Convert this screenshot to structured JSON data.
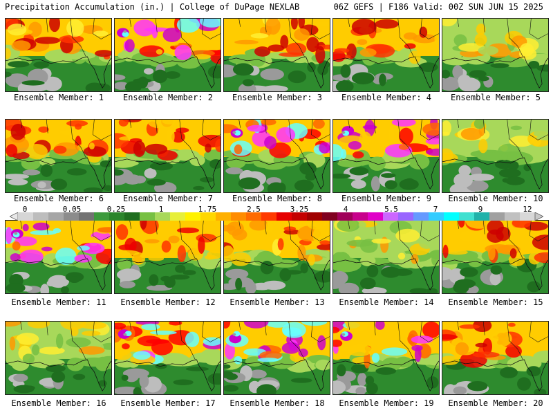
{
  "header": {
    "left": "Precipitation Accumulation (in.) | College of DuPage NEXLAB",
    "right": "06Z GEFS | F186 Valid: 00Z SUN JUN 15 2025"
  },
  "label_prefix": "Ensemble Member: ",
  "members": [
    {
      "n": "1",
      "style": "a",
      "seed": 1
    },
    {
      "n": "2",
      "style": "b",
      "seed": 2
    },
    {
      "n": "3",
      "style": "a",
      "seed": 3
    },
    {
      "n": "4",
      "style": "c",
      "seed": 4
    },
    {
      "n": "5",
      "style": "d",
      "seed": 5
    },
    {
      "n": "6",
      "style": "c",
      "seed": 6
    },
    {
      "n": "7",
      "style": "c",
      "seed": 7
    },
    {
      "n": "8",
      "style": "b",
      "seed": 8
    },
    {
      "n": "9",
      "style": "b",
      "seed": 9
    },
    {
      "n": "10",
      "style": "d",
      "seed": 10
    },
    {
      "n": "11",
      "style": "b",
      "seed": 11
    },
    {
      "n": "12",
      "style": "c",
      "seed": 12
    },
    {
      "n": "13",
      "style": "a",
      "seed": 13
    },
    {
      "n": "14",
      "style": "d",
      "seed": 14
    },
    {
      "n": "15",
      "style": "c",
      "seed": 15
    },
    {
      "n": "16",
      "style": "d",
      "seed": 16
    },
    {
      "n": "17",
      "style": "b",
      "seed": 17
    },
    {
      "n": "18",
      "style": "b",
      "seed": 18
    },
    {
      "n": "19",
      "style": "b",
      "seed": 19
    },
    {
      "n": "20",
      "style": "c",
      "seed": 20
    }
  ],
  "colorbar": {
    "colors": [
      "#d6d6d6",
      "#bdbdbd",
      "#a6a6a6",
      "#8c8c8c",
      "#737373",
      "#3d9a3d",
      "#2b852b",
      "#1f6e1f",
      "#77c043",
      "#a8d85a",
      "#e7ef3a",
      "#fff200",
      "#ffd700",
      "#ffb000",
      "#ff8c00",
      "#ff6a00",
      "#ff3a00",
      "#e60000",
      "#c40000",
      "#a00000",
      "#800020",
      "#a0005a",
      "#c8008c",
      "#e000c8",
      "#cc66ff",
      "#9966ff",
      "#6699ff",
      "#33ccff",
      "#00ffff",
      "#40e0d0",
      "#20b2aa",
      "#a0a0a0",
      "#c0c0c0",
      "#d8d8d8"
    ],
    "ticks": [
      "0",
      "0.05",
      "0.25",
      "1",
      "1.75",
      "2.5",
      "3.25",
      "4",
      "5.5",
      "7",
      "9",
      "12"
    ]
  }
}
